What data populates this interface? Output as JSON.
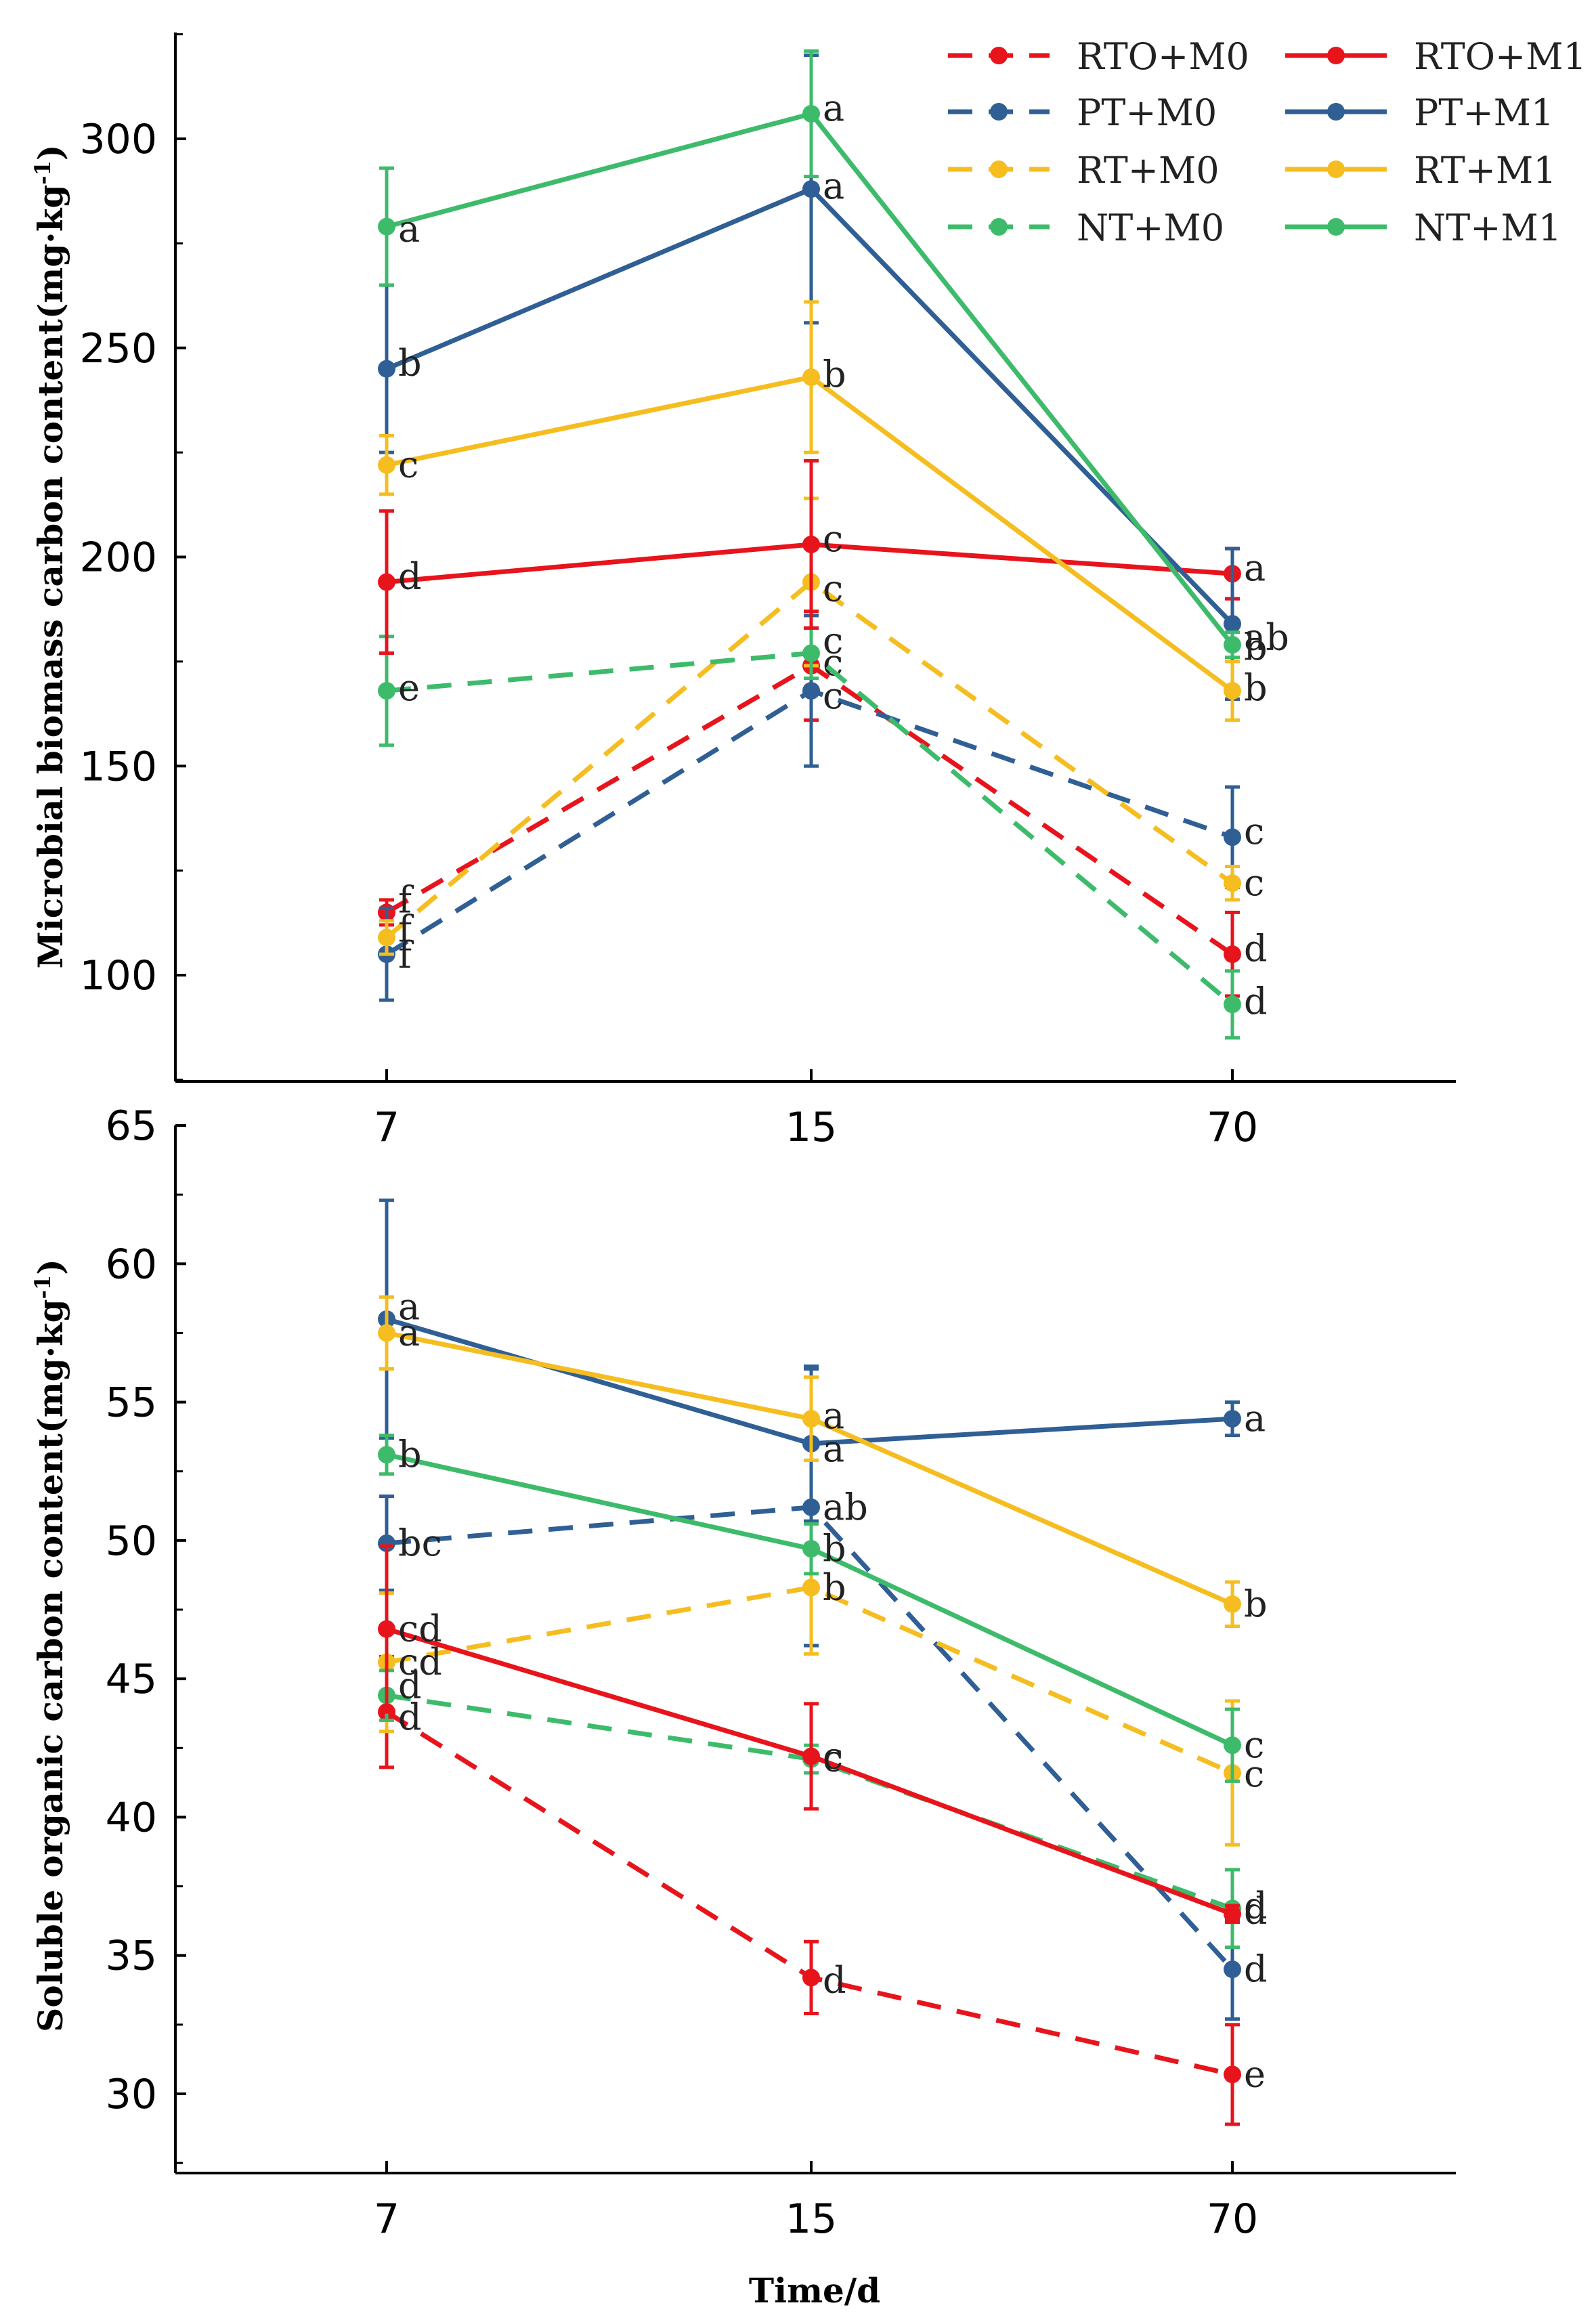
{
  "colors": {
    "RTO": "#e8141c",
    "PT": "#2f5f94",
    "RT": "#f5bd1f",
    "NT": "#3dbb6b",
    "axis": "#000000"
  },
  "legend": [
    {
      "label": "RTO+M0",
      "treatment": "RTO",
      "dashed": true
    },
    {
      "label": "RTO+M1",
      "treatment": "RTO",
      "dashed": false
    },
    {
      "label": "PT+M0",
      "treatment": "PT",
      "dashed": true
    },
    {
      "label": "PT+M1",
      "treatment": "PT",
      "dashed": false
    },
    {
      "label": "RT+M0",
      "treatment": "RT",
      "dashed": true
    },
    {
      "label": "RT+M1",
      "treatment": "RT",
      "dashed": false
    },
    {
      "label": "NT+M0",
      "treatment": "NT",
      "dashed": true
    },
    {
      "label": "NT+M1",
      "treatment": "NT",
      "dashed": false
    }
  ],
  "chart_data": [
    {
      "type": "line",
      "title": "",
      "xlabel": "",
      "ylabel": "Microbial biomass carbon content",
      "ylabel_unit": "(mg·kg",
      "ylabel_exp": "-1",
      "ylabel_close": ")",
      "categories": [
        "7",
        "15",
        "70"
      ],
      "ylim": [
        75,
        325
      ],
      "yticks": [
        100,
        150,
        200,
        250,
        300
      ],
      "series": [
        {
          "name": "RTO+M0",
          "treatment": "RTO",
          "dashed": true,
          "values": [
            115,
            174,
            105
          ],
          "errors": [
            3,
            13,
            10
          ],
          "letters": [
            "f",
            "c",
            "d"
          ]
        },
        {
          "name": "PT+M0",
          "treatment": "PT",
          "dashed": true,
          "values": [
            105,
            168,
            133
          ],
          "errors": [
            11,
            18,
            12
          ],
          "letters": [
            "f",
            "c",
            "c"
          ]
        },
        {
          "name": "RT+M0",
          "treatment": "RT",
          "dashed": true,
          "values": [
            109,
            194,
            122
          ],
          "errors": [
            4,
            20,
            4
          ],
          "letters": [
            "f",
            "c",
            "c"
          ]
        },
        {
          "name": "NT+M0",
          "treatment": "NT",
          "dashed": true,
          "values": [
            168,
            177,
            93
          ],
          "errors": [
            13,
            6,
            8
          ],
          "letters": [
            "e",
            "c",
            "d"
          ]
        },
        {
          "name": "RTO+M1",
          "treatment": "RTO",
          "dashed": false,
          "values": [
            194,
            203,
            196
          ],
          "errors": [
            17,
            20,
            6
          ],
          "letters": [
            "d",
            "c",
            "a"
          ]
        },
        {
          "name": "PT+M1",
          "treatment": "PT",
          "dashed": false,
          "values": [
            245,
            288,
            184
          ],
          "errors": [
            20,
            32,
            18
          ],
          "letters": [
            "b",
            "a",
            "ab"
          ]
        },
        {
          "name": "RT+M1",
          "treatment": "RT",
          "dashed": false,
          "values": [
            222,
            243,
            168
          ],
          "errors": [
            7,
            18,
            7
          ],
          "letters": [
            "c",
            "b",
            "b"
          ]
        },
        {
          "name": "NT+M1",
          "treatment": "NT",
          "dashed": false,
          "values": [
            279,
            306,
            179
          ],
          "errors": [
            14,
            15,
            3
          ],
          "letters": [
            "a",
            "a",
            "b"
          ]
        }
      ]
    },
    {
      "type": "line",
      "title": "",
      "xlabel": "Time/d",
      "ylabel": "Soluble organic carbon content",
      "ylabel_unit": "(mg·kg",
      "ylabel_exp": "-1",
      "ylabel_close": ")",
      "categories": [
        "7",
        "15",
        "70"
      ],
      "ylim": [
        27,
        65
      ],
      "yticks": [
        30,
        35,
        40,
        45,
        50,
        55,
        60,
        65
      ],
      "series": [
        {
          "name": "RTO+M0",
          "treatment": "RTO",
          "dashed": true,
          "values": [
            43.8,
            34.2,
            30.7
          ],
          "errors": [
            2.0,
            1.3,
            1.8
          ],
          "letters": [
            "d",
            "d",
            "e"
          ]
        },
        {
          "name": "PT+M0",
          "treatment": "PT",
          "dashed": true,
          "values": [
            49.9,
            51.2,
            34.5
          ],
          "errors": [
            1.7,
            5.0,
            1.8
          ],
          "letters": [
            "bc",
            "ab",
            "d"
          ]
        },
        {
          "name": "RT+M0",
          "treatment": "RT",
          "dashed": true,
          "values": [
            45.6,
            48.3,
            41.6
          ],
          "errors": [
            2.5,
            2.4,
            2.6
          ],
          "letters": [
            "cd",
            "b",
            "c"
          ]
        },
        {
          "name": "NT+M0",
          "treatment": "NT",
          "dashed": true,
          "values": [
            44.4,
            42.1,
            36.7
          ],
          "errors": [
            0.9,
            0.5,
            1.4
          ],
          "letters": [
            "d",
            "c",
            "d"
          ]
        },
        {
          "name": "RTO+M1",
          "treatment": "RTO",
          "dashed": false,
          "values": [
            46.8,
            42.2,
            36.5
          ],
          "errors": [
            3.0,
            1.9,
            0.3
          ],
          "letters": [
            "cd",
            "c",
            "d"
          ]
        },
        {
          "name": "PT+M1",
          "treatment": "PT",
          "dashed": false,
          "values": [
            58.0,
            53.5,
            54.4
          ],
          "errors": [
            4.3,
            2.8,
            0.6
          ],
          "letters": [
            "a",
            "a",
            "a"
          ]
        },
        {
          "name": "RT+M1",
          "treatment": "RT",
          "dashed": false,
          "values": [
            57.5,
            54.4,
            47.7
          ],
          "errors": [
            1.3,
            1.5,
            0.8
          ],
          "letters": [
            "a",
            "a",
            "b"
          ]
        },
        {
          "name": "NT+M1",
          "treatment": "NT",
          "dashed": false,
          "values": [
            53.1,
            49.7,
            42.6
          ],
          "errors": [
            0.7,
            0.9,
            1.3
          ],
          "letters": [
            "b",
            "b",
            "c"
          ]
        }
      ]
    }
  ]
}
